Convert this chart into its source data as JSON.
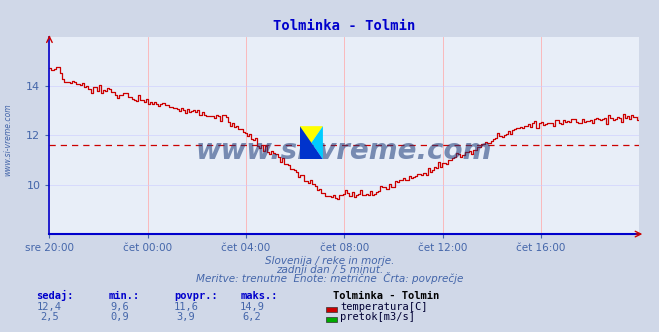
{
  "title": "Tolminka - Tolmin",
  "title_color": "#0000cc",
  "bg_color": "#d0d8e8",
  "plot_bg_color": "#e8eef8",
  "grid_color_v": "#ffaaaa",
  "grid_color_h": "#ccccff",
  "xlabel_ticks": [
    "sre 20:00",
    "čet 00:00",
    "čet 04:00",
    "čet 08:00",
    "čet 12:00",
    "čet 16:00"
  ],
  "tick_color": "#4466aa",
  "temp_color": "#cc0000",
  "flow_color": "#00aa00",
  "temp_avg": 11.6,
  "flow_avg": 3.9,
  "temp_min": 9.6,
  "temp_max": 14.9,
  "flow_min": 0.9,
  "flow_max": 6.2,
  "temp_current": 12.4,
  "flow_current": 2.5,
  "ylim": [
    8,
    16
  ],
  "yticks": [
    10,
    12,
    14
  ],
  "footer_line1": "Slovenija / reke in morje.",
  "footer_line2": "zadnji dan / 5 minut.",
  "footer_line3": "Meritve: trenutne  Enote: metrične  Črta: povprečje",
  "footer_color": "#4466aa",
  "watermark": "www.si-vreme.com",
  "watermark_color": "#1a3a7a",
  "legend_title": "Tolminka - Tolmin",
  "legend_temp": "temperatura[C]",
  "legend_flow": "pretok[m3/s]",
  "sidebar_text": "www.si-vreme.com",
  "sidebar_color": "#4466aa",
  "header_color": "#0000cc",
  "val_color": "#4466aa"
}
